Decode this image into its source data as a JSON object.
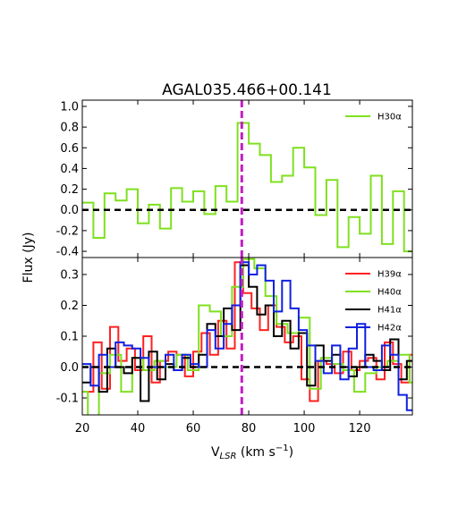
{
  "chart_data": [
    {
      "type": "line",
      "panel": "top",
      "title": "AGAL035.466+00.141",
      "xlim": [
        20,
        139
      ],
      "ylim": [
        -0.46,
        1.06
      ],
      "yticks": [
        -0.4,
        -0.2,
        0.0,
        0.2,
        0.4,
        0.6,
        0.8,
        1.0
      ],
      "ytick_labels": [
        "-0.4",
        "-0.2",
        "0.0",
        "0.2",
        "0.4",
        "0.6",
        "0.8",
        "1.0"
      ],
      "legend_position": "upper right",
      "reference_lines": {
        "zero_dashed": 0.0,
        "vlsr_marker": 77.5
      },
      "series": [
        {
          "name": "H30α",
          "color": "#7fe01e",
          "x": [
            20,
            24,
            28,
            32,
            36,
            40,
            44,
            48,
            52,
            56,
            60,
            64,
            68,
            72,
            76,
            80,
            84,
            88,
            92,
            96,
            100,
            104,
            108,
            112,
            116,
            120,
            124,
            128,
            132,
            136,
            140
          ],
          "values": [
            0.07,
            -0.27,
            0.16,
            0.09,
            0.2,
            -0.13,
            0.05,
            -0.18,
            0.21,
            0.08,
            0.18,
            -0.04,
            0.23,
            0.08,
            0.84,
            0.64,
            0.53,
            0.27,
            0.33,
            0.6,
            0.41,
            -0.05,
            0.29,
            -0.36,
            -0.07,
            -0.23,
            0.33,
            -0.33,
            0.18,
            -0.4,
            -0.4
          ]
        }
      ]
    },
    {
      "type": "line",
      "panel": "bottom",
      "xlabel": "V",
      "xlabel_sub": "LSR",
      "xlabel_unit": " (km s",
      "xlabel_sup": "−1",
      "xlabel_close": ")",
      "ylabel": "Flux (Jy)",
      "xlim": [
        20,
        139
      ],
      "ylim": [
        -0.155,
        0.355
      ],
      "xticks": [
        20,
        40,
        60,
        80,
        100,
        120
      ],
      "xtick_labels": [
        "20",
        "40",
        "60",
        "80",
        "100",
        "120"
      ],
      "yticks": [
        -0.1,
        0.0,
        0.1,
        0.2,
        0.3
      ],
      "ytick_labels": [
        "-0.1",
        "0.0",
        "0.1",
        "0.2",
        "0.3"
      ],
      "legend_position": "upper right",
      "reference_lines": {
        "zero_dashed": 0.0,
        "vlsr_marker": 77.5
      },
      "series": [
        {
          "name": "H39α",
          "color": "#ff2020",
          "x": [
            20,
            24,
            27,
            30,
            33,
            36,
            39,
            42,
            45,
            48,
            51,
            54,
            57,
            60,
            63,
            66,
            69,
            72,
            75,
            78,
            81,
            84,
            87,
            90,
            93,
            96,
            99,
            102,
            105,
            108,
            111,
            114,
            117,
            120,
            123,
            126,
            129,
            132,
            135,
            138,
            140
          ],
          "values": [
            -0.08,
            0.08,
            -0.07,
            0.13,
            0.02,
            0.06,
            -0.01,
            0.1,
            -0.05,
            0.02,
            0.05,
            0.04,
            -0.03,
            0.05,
            0.11,
            0.04,
            0.15,
            0.06,
            0.34,
            0.24,
            0.19,
            0.12,
            0.2,
            0.13,
            0.08,
            0.1,
            -0.04,
            -0.11,
            0.02,
            0.01,
            -0.02,
            0.05,
            -0.01,
            0.02,
            0.03,
            -0.04,
            0.08,
            0.01,
            -0.05,
            0.04,
            0.04
          ]
        },
        {
          "name": "H40α",
          "color": "#7fe01e",
          "x": [
            20,
            22,
            26,
            30,
            34,
            38,
            42,
            46,
            50,
            54,
            58,
            62,
            66,
            70,
            74,
            78,
            82,
            86,
            90,
            94,
            98,
            102,
            106,
            110,
            114,
            118,
            122,
            126,
            130,
            134,
            138,
            140
          ],
          "values": [
            -0.08,
            -0.16,
            -0.02,
            0.04,
            -0.08,
            0.03,
            -0.01,
            0.02,
            0.0,
            0.04,
            -0.01,
            0.2,
            0.18,
            0.1,
            0.26,
            0.35,
            0.32,
            0.23,
            0.14,
            0.11,
            0.16,
            -0.07,
            0.03,
            0.01,
            -0.01,
            -0.08,
            -0.02,
            0.0,
            0.02,
            0.04,
            -0.05,
            -0.05
          ]
        },
        {
          "name": "H41α",
          "color": "#000000",
          "x": [
            20,
            23,
            26,
            29,
            32,
            35,
            38,
            41,
            44,
            47,
            50,
            53,
            56,
            59,
            62,
            65,
            68,
            71,
            74,
            77,
            80,
            83,
            86,
            89,
            92,
            95,
            98,
            101,
            104,
            107,
            110,
            113,
            116,
            119,
            122,
            125,
            128,
            131,
            134,
            137,
            140
          ],
          "values": [
            -0.05,
            0.0,
            -0.08,
            0.06,
            0.0,
            -0.02,
            0.03,
            -0.11,
            0.05,
            -0.04,
            0.01,
            -0.01,
            0.03,
            0.0,
            0.04,
            0.14,
            0.1,
            0.19,
            0.12,
            0.33,
            0.26,
            0.17,
            0.2,
            0.1,
            0.15,
            0.06,
            0.11,
            -0.06,
            0.07,
            0.02,
            0.04,
            0.0,
            -0.03,
            0.0,
            0.04,
            0.02,
            -0.01,
            0.09,
            -0.04,
            0.02,
            0.02
          ]
        },
        {
          "name": "H42α",
          "color": "#1020e0",
          "x": [
            20,
            23,
            26,
            29,
            32,
            35,
            38,
            41,
            44,
            47,
            50,
            53,
            56,
            59,
            62,
            65,
            68,
            71,
            74,
            77,
            80,
            83,
            86,
            89,
            92,
            95,
            98,
            101,
            104,
            107,
            110,
            113,
            116,
            119,
            122,
            125,
            128,
            131,
            134,
            137,
            140
          ],
          "values": [
            0.01,
            -0.06,
            0.04,
            0.0,
            0.08,
            0.07,
            0.06,
            0.03,
            0.0,
            0.0,
            0.04,
            -0.01,
            0.04,
            0.01,
            0.0,
            0.12,
            0.06,
            0.14,
            0.2,
            0.34,
            0.3,
            0.33,
            0.28,
            0.18,
            0.28,
            0.19,
            0.12,
            0.07,
            0.02,
            -0.02,
            0.07,
            -0.04,
            0.06,
            0.14,
            0.0,
            -0.01,
            0.07,
            0.04,
            -0.09,
            -0.14,
            -0.14
          ]
        }
      ]
    }
  ]
}
